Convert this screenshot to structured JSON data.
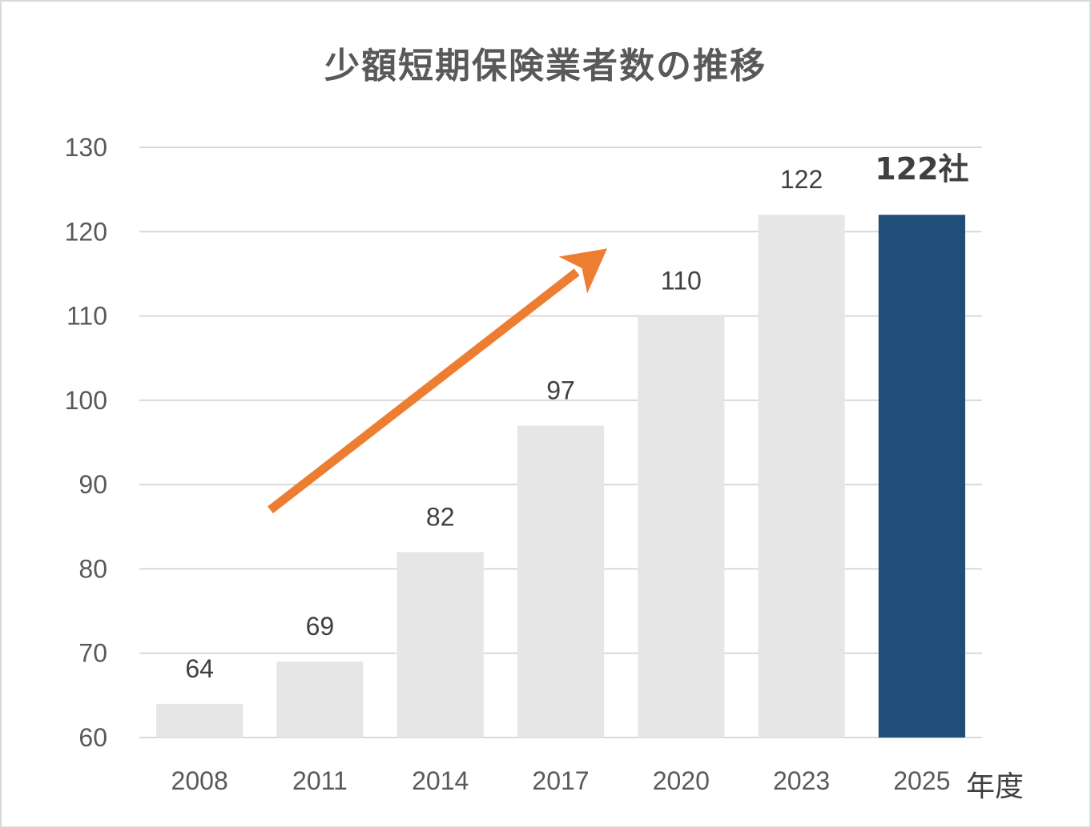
{
  "chart_data": {
    "type": "bar",
    "title": "少額短期保険業者数の推移",
    "categories": [
      "2008",
      "2011",
      "2014",
      "2017",
      "2020",
      "2023",
      "2025"
    ],
    "values": [
      64,
      69,
      82,
      97,
      110,
      122,
      122
    ],
    "data_labels": [
      "64",
      "69",
      "82",
      "97",
      "110",
      "122",
      "122社"
    ],
    "xlabel": "年度",
    "ylabel": "",
    "ylim": [
      60,
      130
    ],
    "yticks": [
      60,
      70,
      80,
      90,
      100,
      110,
      120,
      130
    ],
    "grid": true,
    "highlight_index": 6,
    "colors": {
      "bar": "#e6e6e6",
      "highlight": "#1f4e79",
      "grid": "#d9d9d9",
      "arrow": "#ed7d31"
    },
    "annotations": [
      {
        "type": "arrow",
        "meaning": "upward trend",
        "from": {
          "category": "2011",
          "value": 87
        },
        "to": {
          "category": "2017",
          "value": 118
        }
      }
    ]
  }
}
